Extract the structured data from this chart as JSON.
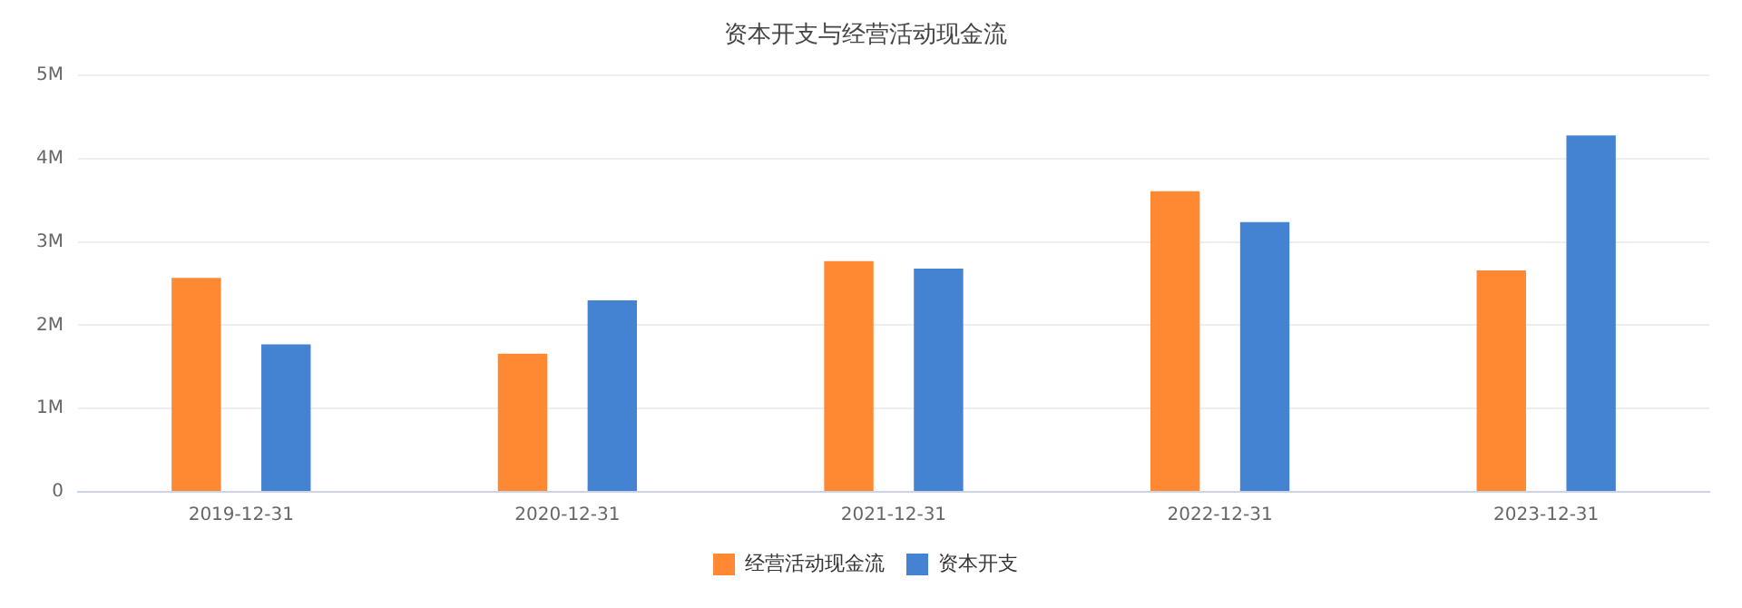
{
  "chart_data": {
    "type": "bar",
    "title": "资本开支与经营活动现金流",
    "categories": [
      "2019-12-31",
      "2020-12-31",
      "2021-12-31",
      "2022-12-31",
      "2023-12-31"
    ],
    "series": [
      {
        "name": "经营活动现金流",
        "color": "#ff8833",
        "values": [
          2570000,
          1660000,
          2770000,
          3610000,
          2660000
        ]
      },
      {
        "name": "资本开支",
        "color": "#4482d2",
        "values": [
          1770000,
          2300000,
          2680000,
          3240000,
          4280000
        ]
      }
    ],
    "ylim": [
      0,
      5000000
    ],
    "yticks": [
      0,
      {
        "value": 1000000,
        "label": "1M"
      },
      {
        "value": 2000000,
        "label": "2M"
      },
      {
        "value": 3000000,
        "label": "3M"
      },
      {
        "value": 4000000,
        "label": "4M"
      },
      {
        "value": 5000000,
        "label": "5M"
      }
    ],
    "grid": "y",
    "legend": "bottom"
  }
}
